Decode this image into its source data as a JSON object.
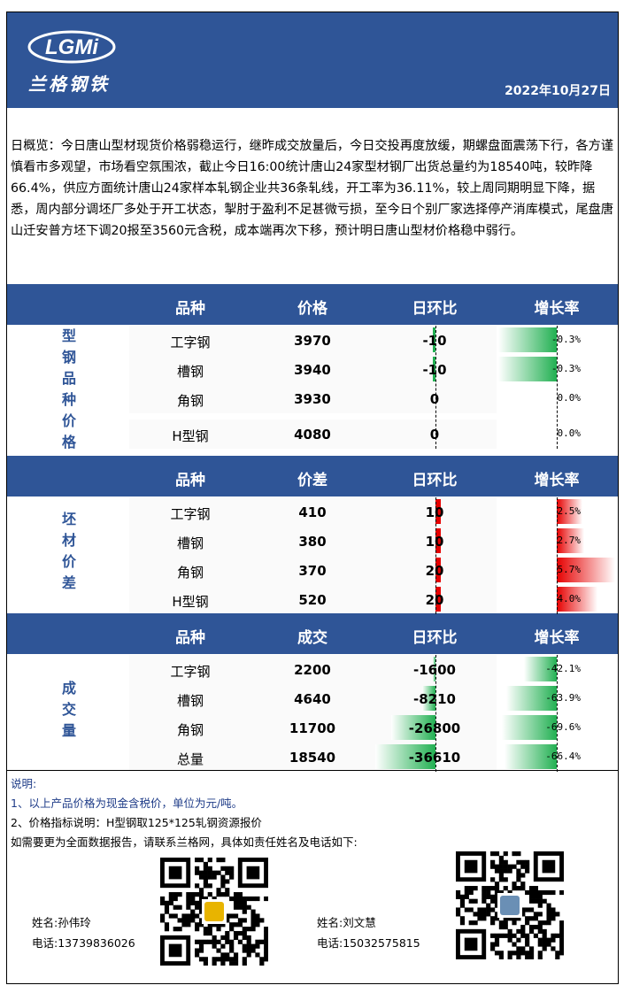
{
  "header": {
    "logo_letters": "LGMi",
    "logo_name": "兰格钢铁",
    "date": "2022年10月27日"
  },
  "summary": "日概览：今日唐山型材现货价格弱稳运行，继昨成交放量后，今日交投再度放缓，期螺盘面震荡下行，各方谨慎看市多观望，市场看空氛围浓，截止今日16:00统计唐山24家型材钢厂出货总量约为18540吨，较昨降66.4%，供应方面统计唐山24家样本轧钢企业共36条轧线，开工率为36.11%，较上周同期明显下降，据悉，周内部分调坯厂多处于开工状态，掣肘于盈利不足甚微亏损，至今日个别厂家选择停产消库模式，尾盘唐山迁安普方坯下调20报至3560元含税，成本端再次下移，预计明日唐山型材价格稳中弱行。",
  "sections": [
    {
      "label": "型钢品种价格",
      "headers": [
        "品种",
        "价格",
        "日环比",
        "增长率"
      ],
      "rows": [
        {
          "name": "工字钢",
          "value": "3970",
          "change": "-10",
          "rate": "-0.3%"
        },
        {
          "name": "槽钢",
          "value": "3940",
          "change": "-10",
          "rate": "-0.3%"
        },
        {
          "name": "角钢",
          "value": "3930",
          "change": "0",
          "rate": "0.0%"
        },
        {
          "name": "H型钢",
          "value": "4080",
          "change": "0",
          "rate": "0.0%"
        }
      ]
    },
    {
      "label": "坯材价差",
      "headers": [
        "品种",
        "价差",
        "日环比",
        "增长率"
      ],
      "rows": [
        {
          "name": "工字钢",
          "value": "410",
          "change": "10",
          "rate": "2.5%"
        },
        {
          "name": "槽钢",
          "value": "380",
          "change": "10",
          "rate": "2.7%"
        },
        {
          "name": "角钢",
          "value": "370",
          "change": "20",
          "rate": "5.7%"
        },
        {
          "name": "H型钢",
          "value": "520",
          "change": "20",
          "rate": "4.0%"
        }
      ]
    },
    {
      "label": "成交量",
      "headers": [
        "品种",
        "成交",
        "日环比",
        "增长率"
      ],
      "rows": [
        {
          "name": "工字钢",
          "value": "2200",
          "change": "-1600",
          "rate": "-42.1%"
        },
        {
          "name": "槽钢",
          "value": "4640",
          "change": "-8210",
          "rate": "-63.9%"
        },
        {
          "name": "角钢",
          "value": "11700",
          "change": "-26800",
          "rate": "-69.6%"
        },
        {
          "name": "总量",
          "value": "18540",
          "change": "-36610",
          "rate": "-66.4%"
        }
      ]
    }
  ],
  "notes": {
    "title": "说明:",
    "line1": "1、以上产品价格为现金含税价，单位为元/吨。",
    "line2": "2、价格指标说明：H型钢取125*125轧钢资源报价",
    "line3": "如需要更为全面数据报告，请联系兰格网，具体如责任姓名及电话如下:"
  },
  "contacts": [
    {
      "name": "姓名:孙伟玲",
      "phone": "电话:13739836026"
    },
    {
      "name": "姓名:刘文慧",
      "phone": "电话:15032575815"
    }
  ],
  "colors": {
    "brand_blue": "#2f5597",
    "decrease_green": "#22b052",
    "increase_red": "#e60000"
  }
}
